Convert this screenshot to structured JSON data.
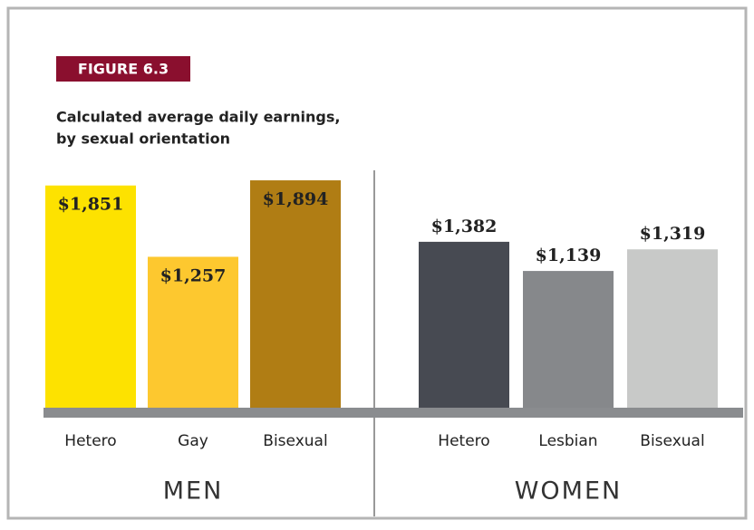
{
  "chart_data": {
    "type": "bar",
    "figure_label": "FIGURE 6.3",
    "title_lines": [
      "Calculated average daily earnings,",
      "by sexual orientation"
    ],
    "groups": [
      {
        "name": "MEN",
        "categories": [
          "Hetero",
          "Gay",
          "Bisexual"
        ],
        "values": [
          1851,
          1257,
          1894
        ],
        "value_labels": [
          "$1,851",
          "$1,257",
          "$1,894"
        ],
        "colors": [
          "#fde200",
          "#fdc82f",
          "#b07d14"
        ]
      },
      {
        "name": "WOMEN",
        "categories": [
          "Hetero",
          "Lesbian",
          "Bisexual"
        ],
        "values": [
          1382,
          1139,
          1319
        ],
        "value_labels": [
          "$1,382",
          "$1,139",
          "$1,319"
        ],
        "colors": [
          "#474a52",
          "#86888b",
          "#c8c9c8"
        ]
      }
    ]
  }
}
